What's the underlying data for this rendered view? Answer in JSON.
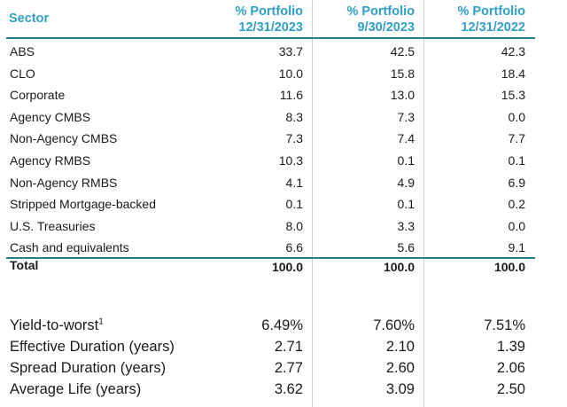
{
  "headers": {
    "sector": "Sector",
    "col1": {
      "line1": "% Portfolio",
      "line2": "12/31/2023"
    },
    "col2": {
      "line1": "% Portfolio",
      "line2": "9/30/2023"
    },
    "col3": {
      "line1": "% Portfolio",
      "line2": "12/31/2022"
    }
  },
  "rows": [
    {
      "sector": "ABS",
      "c1": "33.7",
      "c2": "42.5",
      "c3": "42.3"
    },
    {
      "sector": "CLO",
      "c1": "10.0",
      "c2": "15.8",
      "c3": "18.4"
    },
    {
      "sector": "Corporate",
      "c1": "11.6",
      "c2": "13.0",
      "c3": "15.3"
    },
    {
      "sector": "Agency CMBS",
      "c1": "8.3",
      "c2": "7.3",
      "c3": "0.0"
    },
    {
      "sector": "Non-Agency CMBS",
      "c1": "7.3",
      "c2": "7.4",
      "c3": "7.7"
    },
    {
      "sector": "Agency RMBS",
      "c1": "10.3",
      "c2": "0.1",
      "c3": "0.1"
    },
    {
      "sector": "Non-Agency RMBS",
      "c1": "4.1",
      "c2": "4.9",
      "c3": "6.9"
    },
    {
      "sector": "Stripped Mortgage-backed",
      "c1": "0.1",
      "c2": "0.1",
      "c3": "0.2"
    },
    {
      "sector": "U.S. Treasuries",
      "c1": "8.0",
      "c2": "3.3",
      "c3": "0.0"
    },
    {
      "sector": "Cash and equivalents",
      "c1": "6.6",
      "c2": "5.6",
      "c3": "9.1"
    }
  ],
  "total": {
    "label": "Total",
    "c1": "100.0",
    "c2": "100.0",
    "c3": "100.0"
  },
  "metrics": [
    {
      "label": "Yield-to-worst",
      "sup": "1",
      "c1": "6.49%",
      "c2": "7.60%",
      "c3": "7.51%"
    },
    {
      "label": "Effective Duration (years)",
      "sup": "",
      "c1": "2.71",
      "c2": "2.10",
      "c3": "1.39"
    },
    {
      "label": "Spread Duration (years)",
      "sup": "",
      "c1": "2.77",
      "c2": "2.60",
      "c3": "2.06"
    },
    {
      "label": "Average Life (years)",
      "sup": "",
      "c1": "3.62",
      "c2": "3.09",
      "c3": "2.50"
    }
  ],
  "colors": {
    "header": "#2e9fc9",
    "rule": "#2a7d8e"
  }
}
